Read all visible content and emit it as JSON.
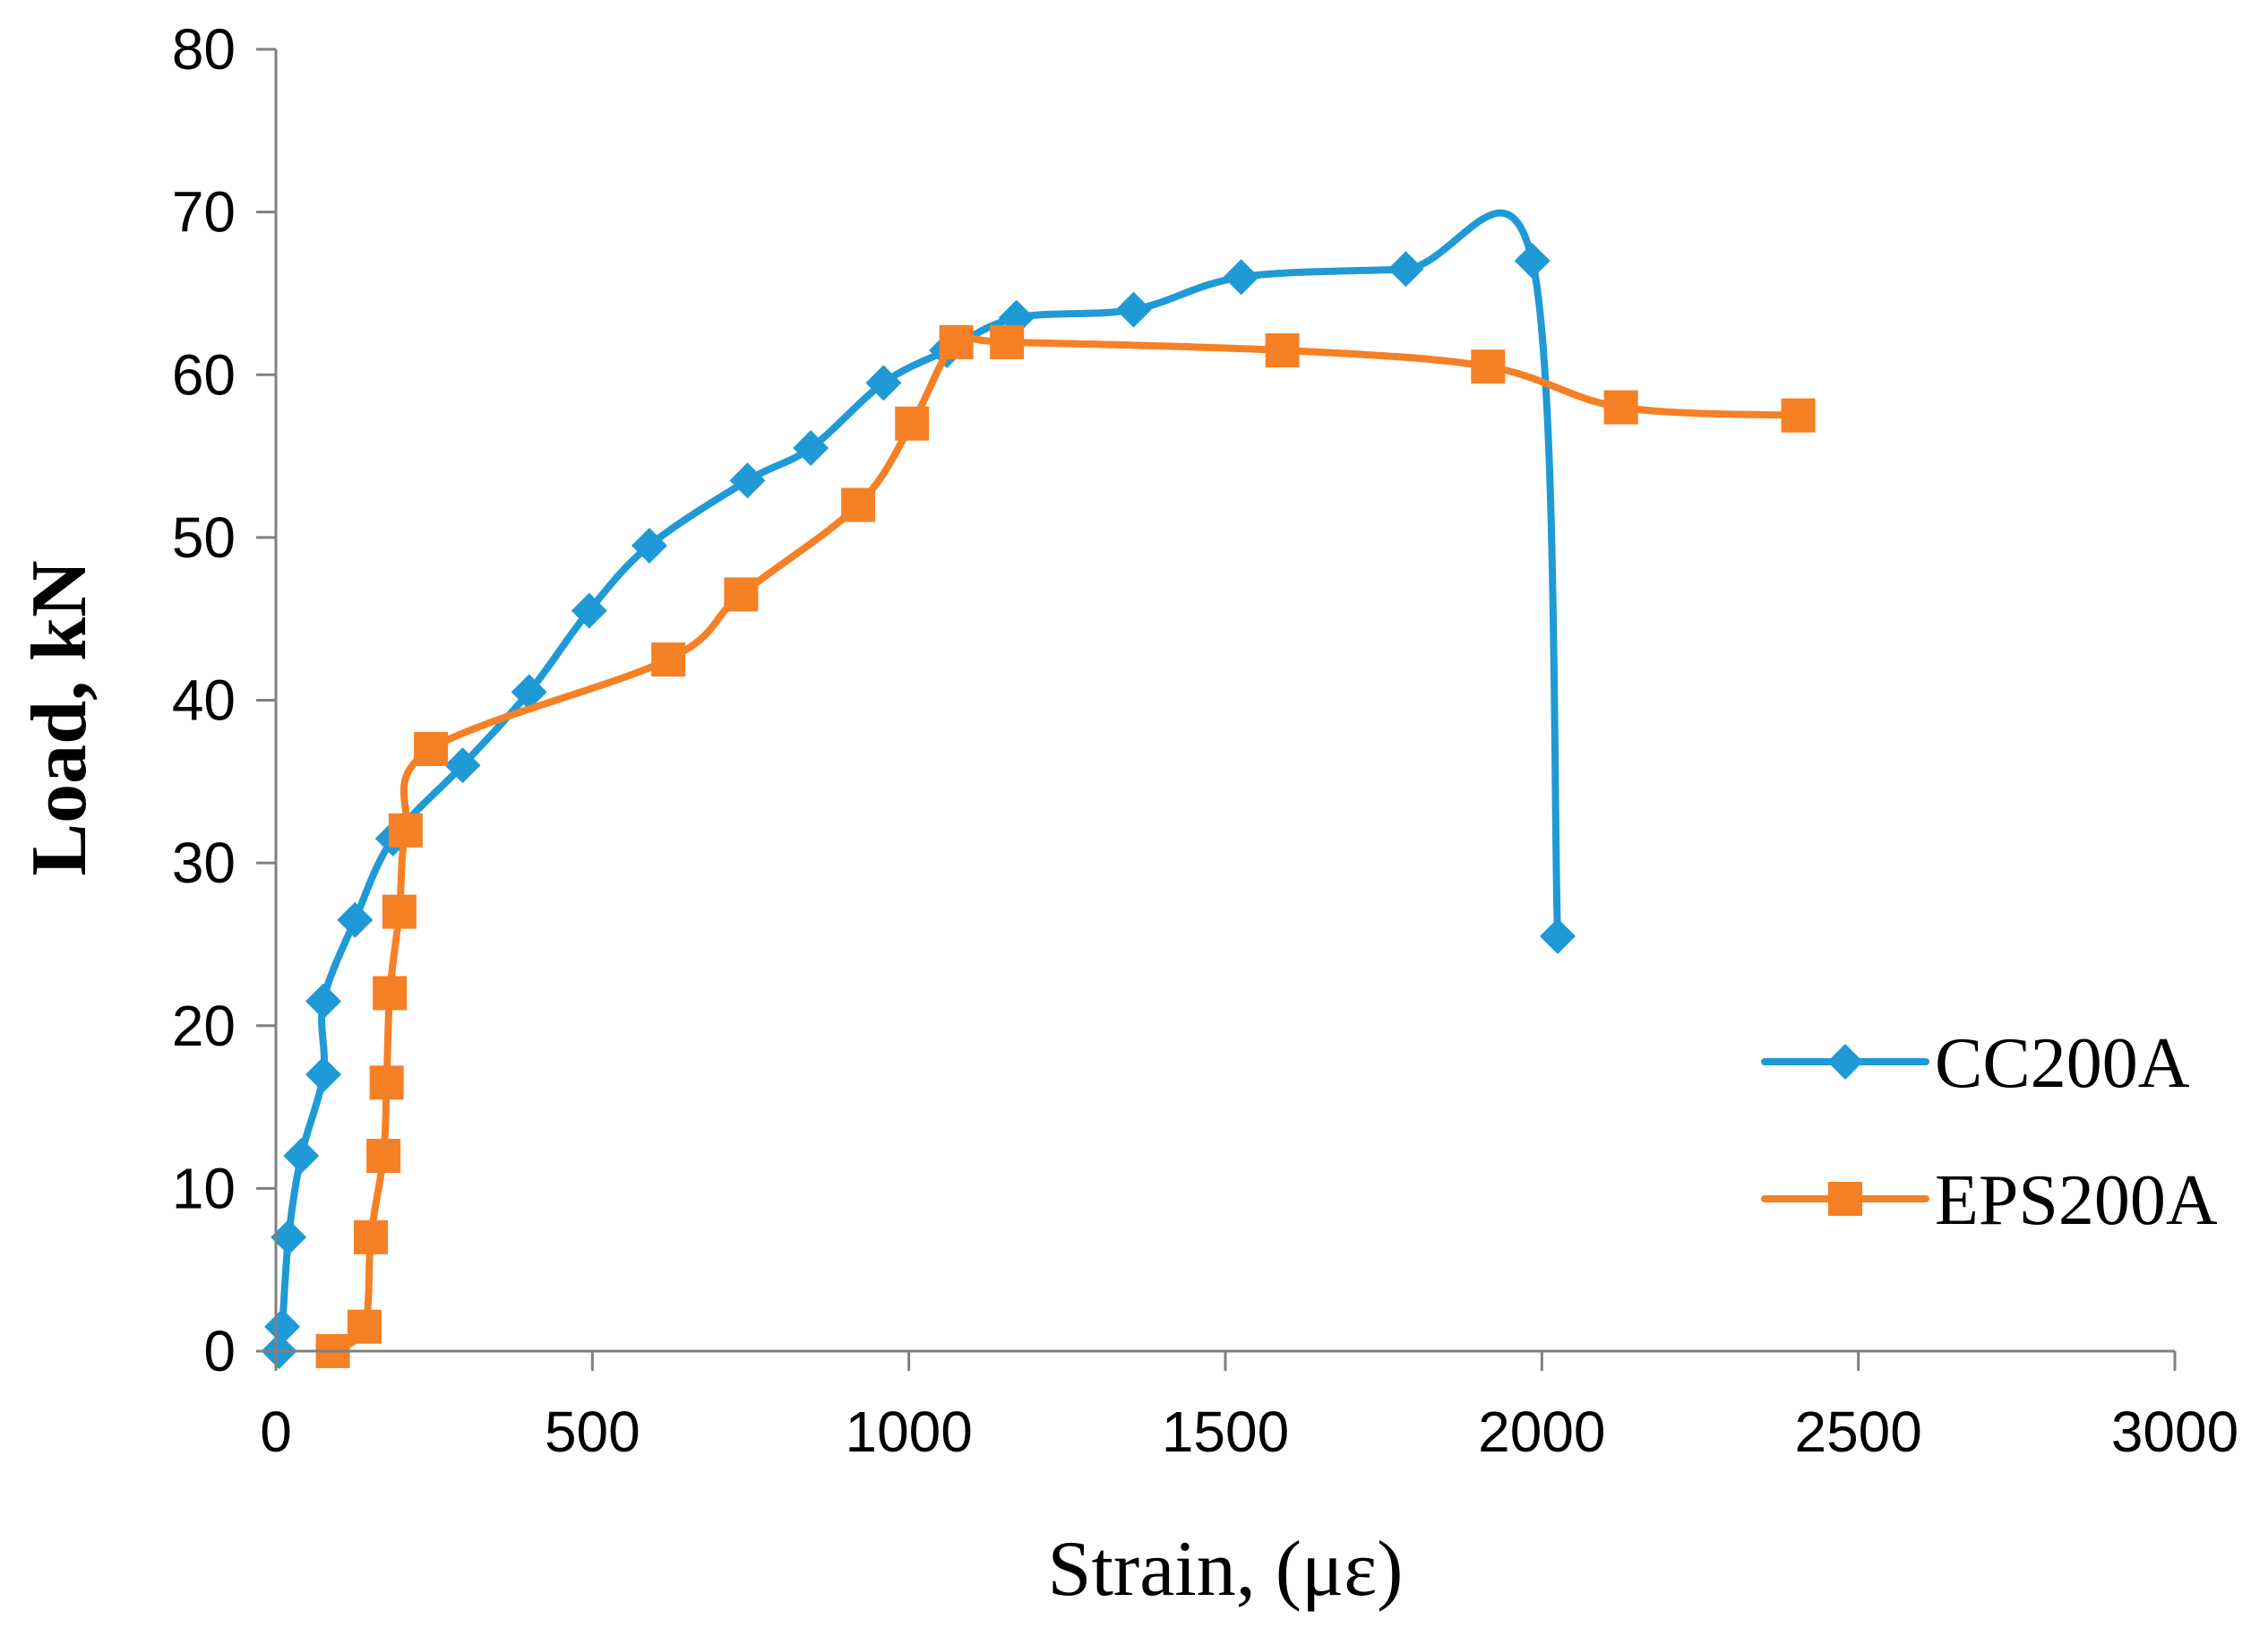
{
  "chart_data": {
    "type": "line",
    "title": "",
    "xlabel": "Strain, (με)",
    "ylabel": "Load, kN",
    "xlim": [
      0,
      3000
    ],
    "ylim": [
      0,
      80
    ],
    "xticks": [
      0,
      500,
      1000,
      1500,
      2000,
      2500,
      3000
    ],
    "yticks": [
      0,
      10,
      20,
      30,
      40,
      50,
      60,
      70,
      80
    ],
    "xtick_labels": [
      "0",
      "500",
      "1000",
      "1500",
      "2000",
      "2500",
      "3000"
    ],
    "ytick_labels": [
      "0",
      "10",
      "20",
      "30",
      "40",
      "50",
      "60",
      "70",
      "80"
    ],
    "grid": false,
    "legend_position": "right",
    "series": [
      {
        "name": "CC200A",
        "color": "#1f9ad6",
        "marker": "diamond",
        "smooth": true,
        "x": [
          5,
          10,
          20,
          40,
          75,
          75,
          125,
          185,
          295,
          400,
          495,
          590,
          745,
          845,
          960,
          1060,
          1170,
          1355,
          1525,
          1785,
          1985,
          2025
        ],
        "y": [
          0,
          1.5,
          7,
          12,
          17,
          21.5,
          26.5,
          31.5,
          36,
          40.5,
          45.5,
          49.5,
          53.5,
          55.5,
          59.5,
          61.5,
          63.5,
          64,
          66,
          66.5,
          67,
          25.5
        ]
      },
      {
        "name": "EPS200A",
        "color": "#f58025",
        "marker": "square",
        "smooth": true,
        "x": [
          90,
          140,
          150,
          170,
          175,
          180,
          195,
          205,
          245,
          620,
          735,
          920,
          1005,
          1075,
          1155,
          1590,
          1915,
          2125,
          2405
        ],
        "y": [
          0,
          1.5,
          7,
          12,
          16.5,
          22,
          27,
          32,
          37,
          42.5,
          46.5,
          52,
          57,
          62,
          62,
          61.5,
          60.5,
          58,
          57.5
        ]
      }
    ]
  }
}
